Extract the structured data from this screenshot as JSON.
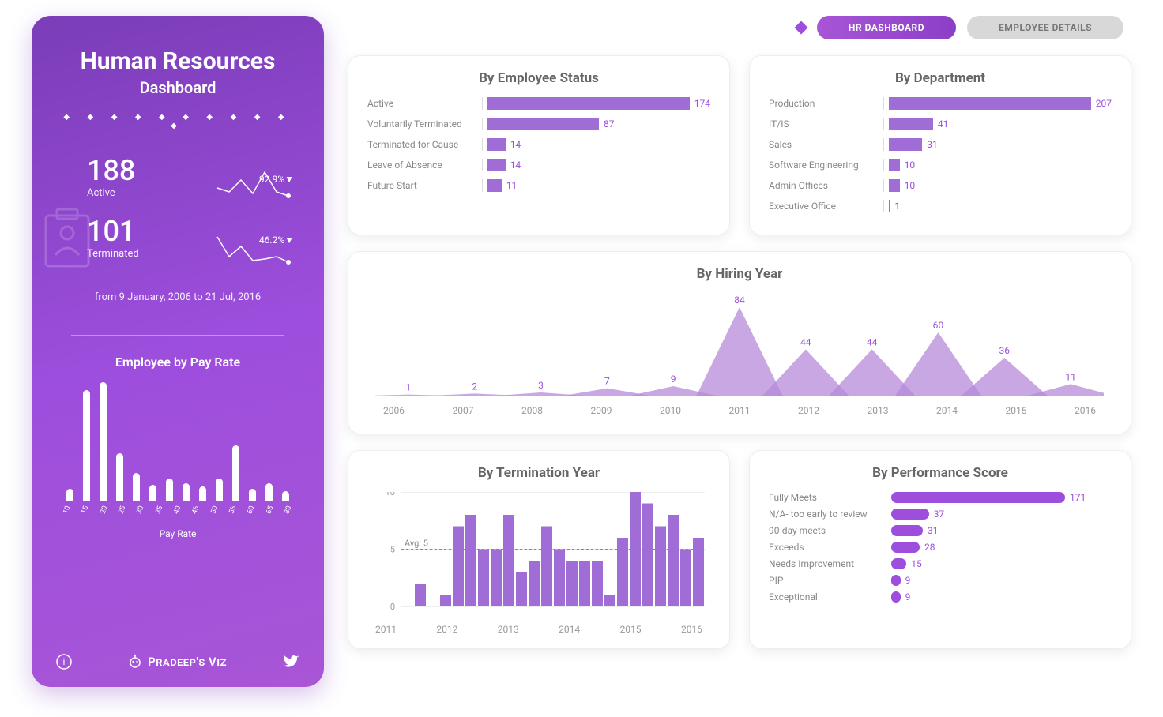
{
  "sidebar": {
    "title": "Human Resources",
    "subtitle": "Dashboard",
    "stats": {
      "active": {
        "value": "188",
        "label": "Active",
        "pct": "92.9%▼"
      },
      "terminated": {
        "value": "101",
        "label": "Terminated",
        "pct": "46.2%▼"
      }
    },
    "date_range": "from 9 January, 2006 to 21 Jul, 2016",
    "payrate": {
      "title": "Employee by Pay Rate",
      "xlabel": "Pay Rate",
      "ticks": [
        "10",
        "15",
        "20",
        "25",
        "30",
        "35",
        "40",
        "45",
        "50",
        "55",
        "60",
        "65",
        "80"
      ],
      "values": [
        15,
        140,
        150,
        60,
        35,
        20,
        28,
        22,
        18,
        28,
        70,
        15,
        22,
        12
      ],
      "bar_color": "#ffffff",
      "max": 150
    },
    "footer_brand": "Pradeep's Viz"
  },
  "tabs": {
    "active": "HR DASHBOARD",
    "inactive": "EMPLOYEE DETAILS"
  },
  "colors": {
    "primary": "#9d4edd",
    "bar": "#a06cd5",
    "bar_light": "#b58ad9",
    "text_muted": "#888888",
    "title": "#666666"
  },
  "employee_status": {
    "title": "By Employee Status",
    "max": 174,
    "items": [
      {
        "label": "Active",
        "value": 174
      },
      {
        "label": "Voluntarily Terminated",
        "value": 87
      },
      {
        "label": "Terminated for Cause",
        "value": 14
      },
      {
        "label": "Leave of Absence",
        "value": 14
      },
      {
        "label": "Future Start",
        "value": 11
      }
    ]
  },
  "department": {
    "title": "By Department",
    "max": 207,
    "items": [
      {
        "label": "Production",
        "value": 207
      },
      {
        "label": "IT/IS",
        "value": 41
      },
      {
        "label": "Sales",
        "value": 31
      },
      {
        "label": "Software Engineering",
        "value": 10
      },
      {
        "label": "Admin Offices",
        "value": 10
      },
      {
        "label": "Executive Office",
        "value": 1
      }
    ]
  },
  "hiring_year": {
    "title": "By Hiring Year",
    "years": [
      "2006",
      "2007",
      "2008",
      "2009",
      "2010",
      "2011",
      "2012",
      "2013",
      "2014",
      "2015",
      "2016"
    ],
    "values": [
      1,
      2,
      3,
      7,
      9,
      84,
      44,
      44,
      60,
      36,
      11
    ],
    "max": 84,
    "fill": "#b58ad9"
  },
  "termination_year": {
    "title": "By Termination Year",
    "ymax": 10,
    "ytick": 5,
    "avg_label": "Avg: 5",
    "avg_value": 5,
    "years": [
      "2011",
      "2012",
      "2013",
      "2014",
      "2015",
      "2016"
    ],
    "bars": [
      0,
      2,
      0,
      1,
      7,
      8,
      5,
      5,
      8,
      3,
      4,
      7,
      5,
      4,
      4,
      4,
      1,
      6,
      10,
      9,
      7,
      8,
      5,
      6
    ],
    "bar_color": "#a06cd5"
  },
  "performance": {
    "title": "By Performance Score",
    "max": 171,
    "items": [
      {
        "label": "Fully Meets",
        "value": 171
      },
      {
        "label": "N/A- too early to review",
        "value": 37
      },
      {
        "label": "90-day meets",
        "value": 31
      },
      {
        "label": "Exceeds",
        "value": 28
      },
      {
        "label": "Needs Improvement",
        "value": 15
      },
      {
        "label": "PIP",
        "value": 9
      },
      {
        "label": "Exceptional",
        "value": 9
      }
    ]
  },
  "sparklines": {
    "active": [
      5,
      25,
      20,
      30,
      35,
      15,
      50,
      32,
      65,
      5,
      80,
      30,
      95,
      35
    ],
    "terminated": [
      5,
      10,
      20,
      35,
      35,
      22,
      50,
      40,
      65,
      38,
      80,
      35,
      95,
      42
    ]
  }
}
